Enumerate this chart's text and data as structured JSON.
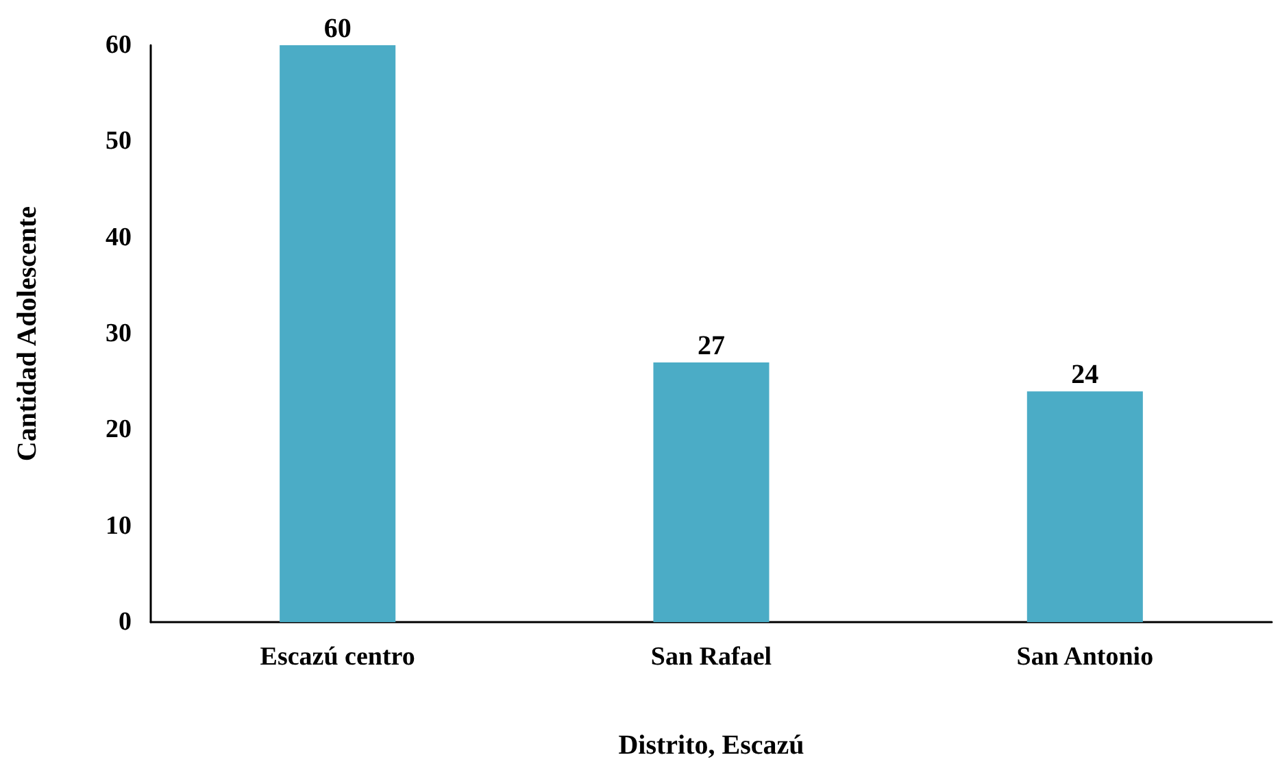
{
  "chart_data": {
    "type": "bar",
    "xlabel": "Distrito, Escazú",
    "ylabel": "Cantidad Adolescente",
    "categories": [
      "Escazú centro",
      "San Rafael",
      "San Antonio"
    ],
    "values": [
      60,
      27,
      24
    ],
    "color": "#4bacc6",
    "ylim": [
      0,
      60
    ],
    "yticks": [
      0,
      10,
      20,
      30,
      40,
      50,
      60
    ],
    "grid": false,
    "data_labels": true
  }
}
